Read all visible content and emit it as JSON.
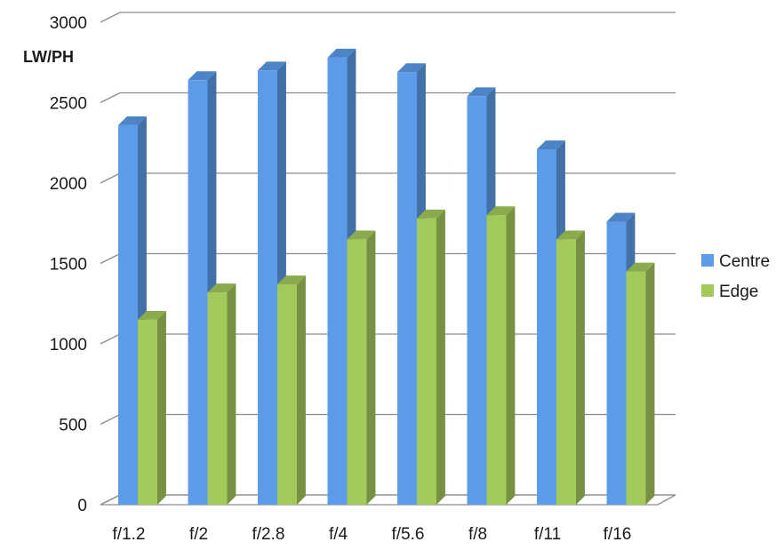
{
  "chart_data": {
    "type": "bar",
    "title": "",
    "xlabel": "",
    "ylabel": "LW/PH",
    "ylim": [
      0,
      3000
    ],
    "yticks": [
      0,
      500,
      1000,
      1500,
      2000,
      2500,
      3000
    ],
    "grid": true,
    "legend_position": "right",
    "categories": [
      "f/1.2",
      "f/2",
      "f/2.8",
      "f/4",
      "f/5.6",
      "f/8",
      "f/11",
      "f/16"
    ],
    "series": [
      {
        "name": "Centre",
        "color": "#5B9BE8",
        "values": [
          2360,
          2640,
          2700,
          2780,
          2690,
          2540,
          2210,
          1760
        ]
      },
      {
        "name": "Edge",
        "color": "#A2C95A",
        "values": [
          1150,
          1320,
          1370,
          1650,
          1780,
          1800,
          1650,
          1450
        ]
      }
    ]
  }
}
